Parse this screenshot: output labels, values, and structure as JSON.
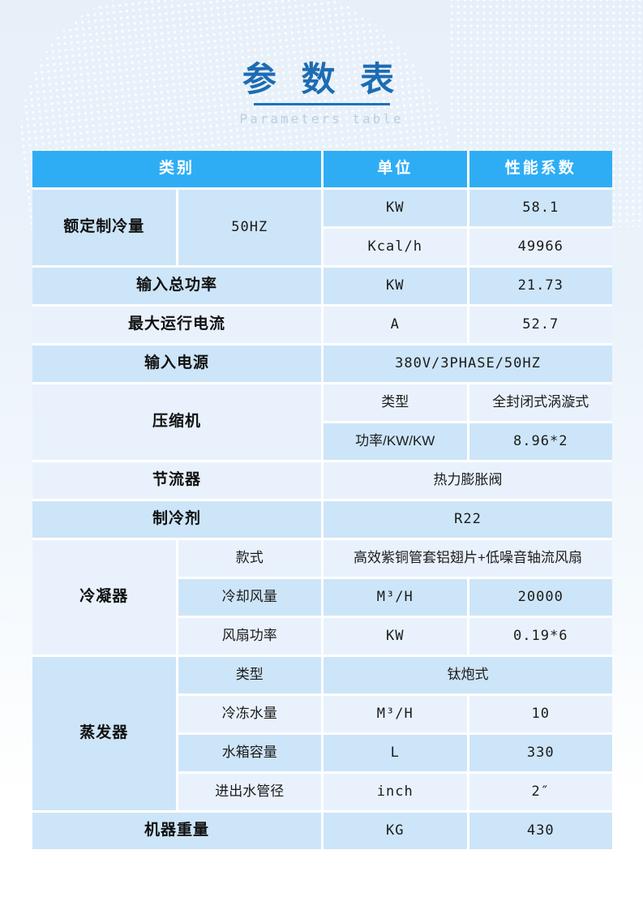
{
  "title": {
    "text": "参 数 表",
    "subtitle": "Parameters table"
  },
  "colors": {
    "header_bg": "#2fadf4",
    "row_dark": "#cde5f8",
    "row_light": "#e9f2fc",
    "title_blue": "#1d6cb3",
    "subtitle_gray_blue": "#b9cfe0",
    "page_bg_top": "#e7f0f9"
  },
  "table": {
    "header": {
      "category": "类别",
      "unit": "单位",
      "coefficient": "性能系数"
    },
    "sections": {
      "rated_cooling": {
        "label": "额定制冷量",
        "freq": "50HZ",
        "kw_unit": "KW",
        "kw_value": "58.1",
        "kcal_unit": "Kcal/h",
        "kcal_value": "49966"
      },
      "total_input_power": {
        "label": "输入总功率",
        "unit": "KW",
        "value": "21.73"
      },
      "max_running_current": {
        "label": "最大运行电流",
        "unit": "A",
        "value": "52.7"
      },
      "input_power_supply": {
        "label": "输入电源",
        "value": "380V/3PHASE/50HZ"
      },
      "compressor": {
        "label": "压缩机",
        "type_label": "类型",
        "type_value": "全封闭式涡漩式",
        "power_label": "功率/KW/KW",
        "power_value": "8.96*2"
      },
      "throttle": {
        "label": "节流器",
        "value": "热力膨胀阀"
      },
      "refrigerant": {
        "label": "制冷剂",
        "value": "R22"
      },
      "condenser": {
        "label": "冷凝器",
        "style_label": "款式",
        "style_value": "高效紫铜管套铝翅片+低噪音轴流风扇",
        "airflow_label": "冷却风量",
        "airflow_unit": "M³/H",
        "airflow_value": "20000",
        "fan_label": "风扇功率",
        "fan_unit": "KW",
        "fan_value": "0.19*6"
      },
      "evaporator": {
        "label": "蒸发器",
        "type_label": "类型",
        "type_value": "钛炮式",
        "water_label": "冷冻水量",
        "water_unit": "M³/H",
        "water_value": "10",
        "tank_label": "水箱容量",
        "tank_unit": "L",
        "tank_value": "330",
        "pipe_label": "进出水管径",
        "pipe_unit": "inch",
        "pipe_value": "2″"
      },
      "machine_weight": {
        "label": "机器重量",
        "unit": "KG",
        "value": "430"
      }
    }
  }
}
